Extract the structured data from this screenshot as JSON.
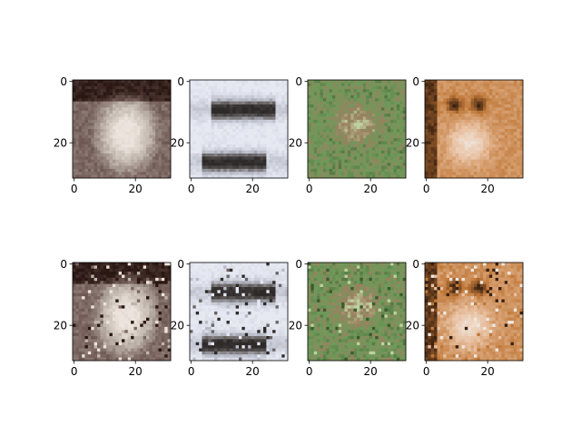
{
  "chart_data": {
    "type": "image_grid",
    "layout": {
      "rows": 2,
      "cols": 4
    },
    "panels": [
      {
        "row": 0,
        "col": 0,
        "subject": "white bird on dark brown background",
        "palette": [
          "#2a1612",
          "#7a6560",
          "#bfb5ad",
          "#ece4dc"
        ],
        "xticks": [
          "0",
          "20"
        ],
        "yticks": [
          "0",
          "20"
        ]
      },
      {
        "row": 0,
        "col": 1,
        "subject": "dark wading bird with reflection on pale background",
        "palette": [
          "#e6e8f2",
          "#b8bcc8",
          "#6a6565",
          "#2e2a2a"
        ],
        "xticks": [
          "0",
          "20"
        ],
        "yticks": [
          "0",
          "20"
        ]
      },
      {
        "row": 0,
        "col": 2,
        "subject": "brown frog among green leaves",
        "palette": [
          "#3e5a30",
          "#6e9a5a",
          "#9a8060",
          "#c0d0a0"
        ],
        "xticks": [
          "0",
          "20"
        ],
        "yticks": [
          "0",
          "20"
        ]
      },
      {
        "row": 0,
        "col": 3,
        "subject": "orange and white cat face close-up",
        "palette": [
          "#3a2010",
          "#c07838",
          "#e8c0a0",
          "#f0e8e0"
        ],
        "xticks": [
          "0",
          "20"
        ],
        "yticks": [
          "0",
          "20"
        ]
      },
      {
        "row": 1,
        "col": 0,
        "subject": "reconstruction: white bird on dark brown background",
        "palette": [
          "#2a1612",
          "#7a6560",
          "#bfb5ad",
          "#ece4dc"
        ],
        "xticks": [
          "0",
          "20"
        ],
        "yticks": [
          "0",
          "20"
        ]
      },
      {
        "row": 1,
        "col": 1,
        "subject": "reconstruction: dark wading bird with reflection",
        "palette": [
          "#e6e8f2",
          "#b8bcc8",
          "#6a6565",
          "#2e2a2a"
        ],
        "xticks": [
          "0",
          "20"
        ],
        "yticks": [
          "0",
          "20"
        ]
      },
      {
        "row": 1,
        "col": 2,
        "subject": "reconstruction: brown frog among green leaves",
        "palette": [
          "#3e5a30",
          "#6e9a5a",
          "#9a8060",
          "#c0d0a0"
        ],
        "xticks": [
          "0",
          "20"
        ],
        "yticks": [
          "0",
          "20"
        ]
      },
      {
        "row": 1,
        "col": 3,
        "subject": "reconstruction: orange and white cat face",
        "palette": [
          "#3a2010",
          "#c07838",
          "#e8c0a0",
          "#f0e8e0"
        ],
        "xticks": [
          "0",
          "20"
        ],
        "yticks": [
          "0",
          "20"
        ]
      }
    ]
  }
}
